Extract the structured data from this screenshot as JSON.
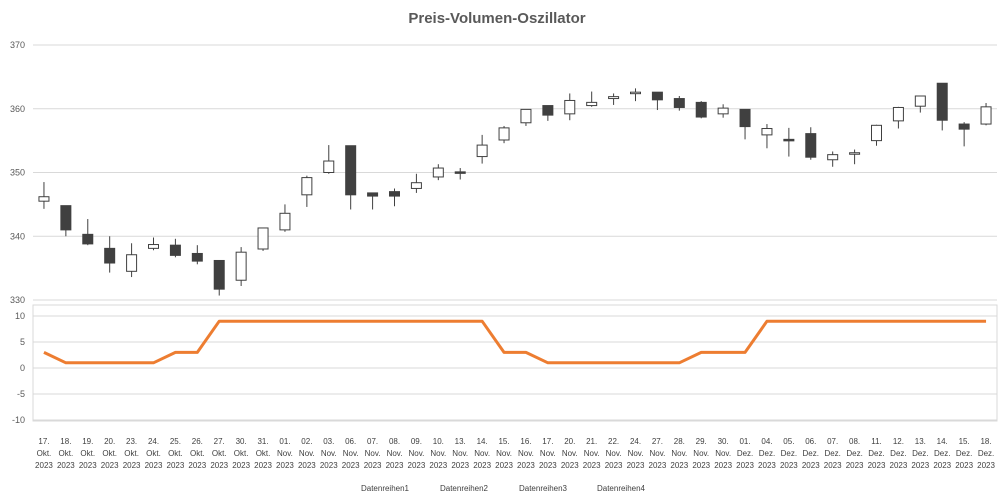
{
  "chart_data": {
    "type": "candlestick+line",
    "title": "Preis-Volumen-Oszillator",
    "x_dates": [
      [
        "17.",
        "Okt.",
        "2023"
      ],
      [
        "18.",
        "Okt.",
        "2023"
      ],
      [
        "19.",
        "Okt.",
        "2023"
      ],
      [
        "20.",
        "Okt.",
        "2023"
      ],
      [
        "23.",
        "Okt.",
        "2023"
      ],
      [
        "24.",
        "Okt.",
        "2023"
      ],
      [
        "25.",
        "Okt.",
        "2023"
      ],
      [
        "26.",
        "Okt.",
        "2023"
      ],
      [
        "27.",
        "Okt.",
        "2023"
      ],
      [
        "30.",
        "Okt.",
        "2023"
      ],
      [
        "31.",
        "Okt.",
        "2023"
      ],
      [
        "01.",
        "Nov.",
        "2023"
      ],
      [
        "02.",
        "Nov.",
        "2023"
      ],
      [
        "03.",
        "Nov.",
        "2023"
      ],
      [
        "06.",
        "Nov.",
        "2023"
      ],
      [
        "07.",
        "Nov.",
        "2023"
      ],
      [
        "08.",
        "Nov.",
        "2023"
      ],
      [
        "09.",
        "Nov.",
        "2023"
      ],
      [
        "10.",
        "Nov.",
        "2023"
      ],
      [
        "13.",
        "Nov.",
        "2023"
      ],
      [
        "14.",
        "Nov.",
        "2023"
      ],
      [
        "15.",
        "Nov.",
        "2023"
      ],
      [
        "16.",
        "Nov.",
        "2023"
      ],
      [
        "17.",
        "Nov.",
        "2023"
      ],
      [
        "20.",
        "Nov.",
        "2023"
      ],
      [
        "21.",
        "Nov.",
        "2023"
      ],
      [
        "22.",
        "Nov.",
        "2023"
      ],
      [
        "24.",
        "Nov.",
        "2023"
      ],
      [
        "27.",
        "Nov.",
        "2023"
      ],
      [
        "28.",
        "Nov.",
        "2023"
      ],
      [
        "29.",
        "Nov.",
        "2023"
      ],
      [
        "30.",
        "Nov.",
        "2023"
      ],
      [
        "01.",
        "Dez.",
        "2023"
      ],
      [
        "04.",
        "Dez.",
        "2023"
      ],
      [
        "05.",
        "Dez.",
        "2023"
      ],
      [
        "06.",
        "Dez.",
        "2023"
      ],
      [
        "07.",
        "Dez.",
        "2023"
      ],
      [
        "08.",
        "Dez.",
        "2023"
      ],
      [
        "11.",
        "Dez.",
        "2023"
      ],
      [
        "12.",
        "Dez.",
        "2023"
      ],
      [
        "13.",
        "Dez.",
        "2023"
      ],
      [
        "14.",
        "Dez.",
        "2023"
      ],
      [
        "15.",
        "Dez.",
        "2023"
      ],
      [
        "18.",
        "Dez.",
        "2023"
      ]
    ],
    "price_axis": {
      "ylim": [
        330,
        370
      ],
      "ticks": [
        "330",
        "340",
        "350",
        "360",
        "370"
      ]
    },
    "oscillator_axis": {
      "ylim": [
        -10,
        10
      ],
      "ticks": [
        "10",
        "5",
        "0",
        "-5",
        "-10"
      ]
    },
    "candles": [
      {
        "o": 345.5,
        "h": 348.5,
        "l": 344.3,
        "c": 346.2
      },
      {
        "o": 344.8,
        "h": 344.8,
        "l": 340.0,
        "c": 341.0
      },
      {
        "o": 340.3,
        "h": 342.7,
        "l": 338.6,
        "c": 338.8
      },
      {
        "o": 338.1,
        "h": 340.0,
        "l": 334.3,
        "c": 335.8
      },
      {
        "o": 334.5,
        "h": 338.9,
        "l": 333.6,
        "c": 337.1
      },
      {
        "o": 338.1,
        "h": 339.8,
        "l": 337.8,
        "c": 338.7
      },
      {
        "o": 338.6,
        "h": 339.6,
        "l": 336.7,
        "c": 337.0
      },
      {
        "o": 337.3,
        "h": 338.6,
        "l": 335.6,
        "c": 336.1
      },
      {
        "o": 336.2,
        "h": 336.2,
        "l": 330.7,
        "c": 331.7
      },
      {
        "o": 333.1,
        "h": 338.3,
        "l": 332.2,
        "c": 337.5
      },
      {
        "o": 338.0,
        "h": 341.3,
        "l": 337.7,
        "c": 341.3
      },
      {
        "o": 341.0,
        "h": 345.0,
        "l": 340.7,
        "c": 343.6
      },
      {
        "o": 346.5,
        "h": 349.5,
        "l": 344.6,
        "c": 349.2
      },
      {
        "o": 350.0,
        "h": 354.3,
        "l": 349.8,
        "c": 351.8
      },
      {
        "o": 354.2,
        "h": 354.2,
        "l": 344.2,
        "c": 346.5
      },
      {
        "o": 346.8,
        "h": 346.8,
        "l": 344.2,
        "c": 346.3
      },
      {
        "o": 347.0,
        "h": 347.5,
        "l": 344.7,
        "c": 346.3
      },
      {
        "o": 347.5,
        "h": 349.8,
        "l": 346.8,
        "c": 348.4
      },
      {
        "o": 349.3,
        "h": 351.3,
        "l": 348.8,
        "c": 350.7
      },
      {
        "o": 350.1,
        "h": 350.7,
        "l": 348.9,
        "c": 349.9
      },
      {
        "o": 352.5,
        "h": 355.9,
        "l": 351.4,
        "c": 354.3
      },
      {
        "o": 355.1,
        "h": 357.3,
        "l": 354.6,
        "c": 357.0
      },
      {
        "o": 357.8,
        "h": 359.9,
        "l": 357.3,
        "c": 359.9
      },
      {
        "o": 360.5,
        "h": 360.5,
        "l": 358.1,
        "c": 359.0
      },
      {
        "o": 359.2,
        "h": 362.4,
        "l": 358.2,
        "c": 361.3
      },
      {
        "o": 360.5,
        "h": 362.7,
        "l": 360.3,
        "c": 361.0
      },
      {
        "o": 361.6,
        "h": 362.4,
        "l": 360.6,
        "c": 361.9
      },
      {
        "o": 362.4,
        "h": 363.2,
        "l": 361.2,
        "c": 362.6
      },
      {
        "o": 362.6,
        "h": 362.6,
        "l": 359.8,
        "c": 361.4
      },
      {
        "o": 361.6,
        "h": 362.0,
        "l": 359.7,
        "c": 360.2
      },
      {
        "o": 361.0,
        "h": 361.2,
        "l": 358.5,
        "c": 358.7
      },
      {
        "o": 359.2,
        "h": 360.7,
        "l": 358.6,
        "c": 360.1
      },
      {
        "o": 359.9,
        "h": 359.9,
        "l": 355.2,
        "c": 357.2
      },
      {
        "o": 355.9,
        "h": 357.6,
        "l": 353.8,
        "c": 356.9
      },
      {
        "o": 355.2,
        "h": 357.0,
        "l": 352.5,
        "c": 355.1
      },
      {
        "o": 356.1,
        "h": 357.1,
        "l": 352.0,
        "c": 352.4
      },
      {
        "o": 352.0,
        "h": 353.3,
        "l": 350.9,
        "c": 352.8
      },
      {
        "o": 352.9,
        "h": 353.6,
        "l": 351.3,
        "c": 353.1
      },
      {
        "o": 355.0,
        "h": 357.5,
        "l": 354.2,
        "c": 357.4
      },
      {
        "o": 358.1,
        "h": 360.3,
        "l": 356.9,
        "c": 360.2
      },
      {
        "o": 360.4,
        "h": 362.0,
        "l": 359.4,
        "c": 362.0
      },
      {
        "o": 364.0,
        "h": 364.0,
        "l": 356.6,
        "c": 358.2
      },
      {
        "o": 357.6,
        "h": 357.9,
        "l": 354.1,
        "c": 356.8
      },
      {
        "o": 357.6,
        "h": 360.9,
        "l": 357.4,
        "c": 360.3
      }
    ],
    "oscillator_values": [
      3,
      1,
      1,
      1,
      1,
      1,
      3,
      3,
      9,
      9,
      9,
      9,
      9,
      9,
      9,
      9,
      9,
      9,
      9,
      9,
      9,
      3,
      3,
      1,
      1,
      1,
      1,
      1,
      1,
      1,
      3,
      3,
      3,
      9,
      9,
      9,
      9,
      9,
      9,
      9,
      9,
      9,
      9,
      9
    ],
    "line_color": "#ED7D31",
    "up_color": "#ffffff",
    "down_color": "#404040",
    "grid": true,
    "legend_position": "bottom",
    "legend": [
      "Datenreihen1",
      "Datenreihen2",
      "Datenreihen3",
      "Datenreihen4"
    ]
  }
}
